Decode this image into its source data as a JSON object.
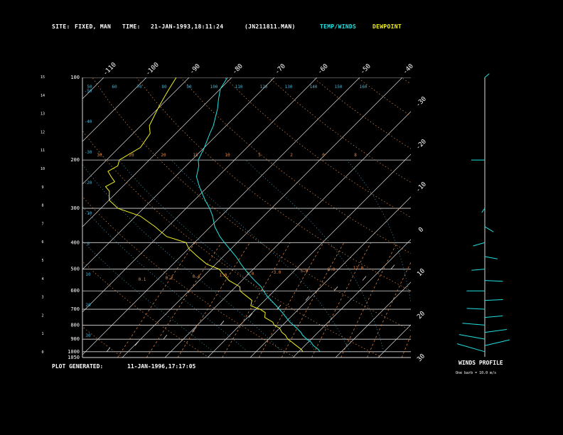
{
  "header": {
    "site_label": "SITE:",
    "site_value": "FIXED, MAN",
    "time_label": "TIME:",
    "time_value": "21-JAN-1993,18:11:24",
    "file_id": "(JN211811.MAN)",
    "legend_temp": "TEMP/WINDS",
    "legend_dew": "DEWPOINT"
  },
  "footer": {
    "label": "PLOT GENERATED:",
    "value": "11-JAN-1996,17:17:05"
  },
  "winds_profile": {
    "title": "WINDS PROFILE",
    "note": "One barb = 10.0 m/s"
  },
  "colors": {
    "temp": "#22e0e0",
    "dew": "#f0f020",
    "grid": "#d8d8d8",
    "mixing": "#e08a4a",
    "dry_adiabat": "#e08a4a",
    "moist_adiabat": "#4ab0d0",
    "wind": "#22e0e0"
  },
  "chart_data": {
    "type": "line",
    "plot_subtype": "skew-T log-P",
    "y_scale": "log",
    "y_unit": "hPa",
    "ylim": [
      1050,
      100
    ],
    "pressure_ticks": [
      "100",
      "200",
      "300",
      "400",
      "500",
      "600",
      "700",
      "800",
      "900",
      "1000",
      "1050"
    ],
    "height_ticks": [
      "0",
      "1",
      "2",
      "3",
      "4",
      "5",
      "6",
      "7",
      "8",
      "9",
      "10",
      "11",
      "12",
      "13",
      "14",
      "15"
    ],
    "temp_ticks_top": [
      "-110",
      "-100",
      "-90",
      "-80",
      "-70",
      "-60",
      "-50",
      "-40"
    ],
    "temp_ticks_right": [
      "-30",
      "-20",
      "-10",
      "0",
      "10",
      "20",
      "30"
    ],
    "dry_adiabat_labels": [
      "-50",
      "-40",
      "-30",
      "-20",
      "-10",
      "0",
      "10",
      "20",
      "30"
    ],
    "mixing_ratio_labels": [
      "0.1",
      "0.2",
      "0.4",
      "1.0",
      "2.0",
      "3.0",
      "5.0",
      "8.0",
      "12.0"
    ],
    "moist_adiabat_labels": [
      "50",
      "60",
      "70",
      "80",
      "90",
      "100",
      "110",
      "120",
      "130",
      "140",
      "150",
      "160"
    ],
    "theta_e_labels": [
      "30",
      "20",
      "20",
      "15",
      "10",
      "5",
      "2",
      "0",
      "8"
    ],
    "series": [
      {
        "name": "TEMP/WINDS",
        "pressure": [
          1000,
          980,
          950,
          920,
          900,
          870,
          850,
          820,
          800,
          780,
          750,
          720,
          700,
          680,
          650,
          620,
          600,
          580,
          550,
          520,
          500,
          480,
          450,
          420,
          400,
          380,
          350,
          320,
          300,
          280,
          250,
          230,
          210,
          200,
          180,
          160,
          150,
          130,
          120,
          110,
          100
        ],
        "temp": [
          5,
          4,
          2,
          0.5,
          -1,
          -3,
          -4,
          -6,
          -7.5,
          -9,
          -11,
          -13,
          -14.5,
          -16,
          -18.5,
          -21,
          -22.5,
          -24,
          -27,
          -30,
          -32,
          -34,
          -37,
          -40.5,
          -43,
          -45.5,
          -49,
          -52,
          -54.5,
          -57.5,
          -62,
          -65,
          -67,
          -68.5,
          -70,
          -72,
          -73,
          -76,
          -78,
          -80,
          -81
        ]
      },
      {
        "name": "DEWPOINT",
        "pressure": [
          1000,
          980,
          950,
          920,
          900,
          870,
          850,
          820,
          800,
          780,
          750,
          720,
          700,
          680,
          650,
          620,
          600,
          580,
          550,
          520,
          500,
          480,
          450,
          420,
          400,
          380,
          350,
          320,
          300,
          280,
          260,
          250,
          240,
          230,
          220,
          210,
          200,
          180,
          160,
          150,
          130,
          120,
          110,
          100
        ],
        "dewpoint": [
          1,
          0,
          -2,
          -4,
          -5.5,
          -7,
          -8.5,
          -10,
          -12,
          -13,
          -16,
          -17,
          -19,
          -22,
          -23,
          -26,
          -28,
          -29,
          -33,
          -36,
          -38,
          -42,
          -46,
          -50,
          -52,
          -58,
          -63,
          -69,
          -76,
          -80,
          -82,
          -84,
          -83,
          -85,
          -87,
          -86,
          -87,
          -85,
          -86,
          -88,
          -90,
          -91,
          -92,
          -93
        ]
      }
    ],
    "winds": [
      {
        "pressure": 1000,
        "speed": 30,
        "dir": 300
      },
      {
        "pressure": 950,
        "speed": 25,
        "dir": 295
      },
      {
        "pressure": 900,
        "speed": 25,
        "dir": 290
      },
      {
        "pressure": 850,
        "speed": 20,
        "dir": 285
      },
      {
        "pressure": 800,
        "speed": 20,
        "dir": 280
      },
      {
        "pressure": 750,
        "speed": 15,
        "dir": 280
      },
      {
        "pressure": 700,
        "speed": 15,
        "dir": 275
      },
      {
        "pressure": 650,
        "speed": 15,
        "dir": 275
      },
      {
        "pressure": 600,
        "speed": 15,
        "dir": 270
      },
      {
        "pressure": 550,
        "speed": 15,
        "dir": 265
      },
      {
        "pressure": 500,
        "speed": 10,
        "dir": 260
      },
      {
        "pressure": 450,
        "speed": 10,
        "dir": 250
      },
      {
        "pressure": 400,
        "speed": 10,
        "dir": 240
      },
      {
        "pressure": 350,
        "speed": 10,
        "dir": 220
      },
      {
        "pressure": 300,
        "speed": 5,
        "dir": 200
      },
      {
        "pressure": 200,
        "speed": 10,
        "dir": 90
      },
      {
        "pressure": 100,
        "speed": 5,
        "dir": 30
      }
    ]
  }
}
